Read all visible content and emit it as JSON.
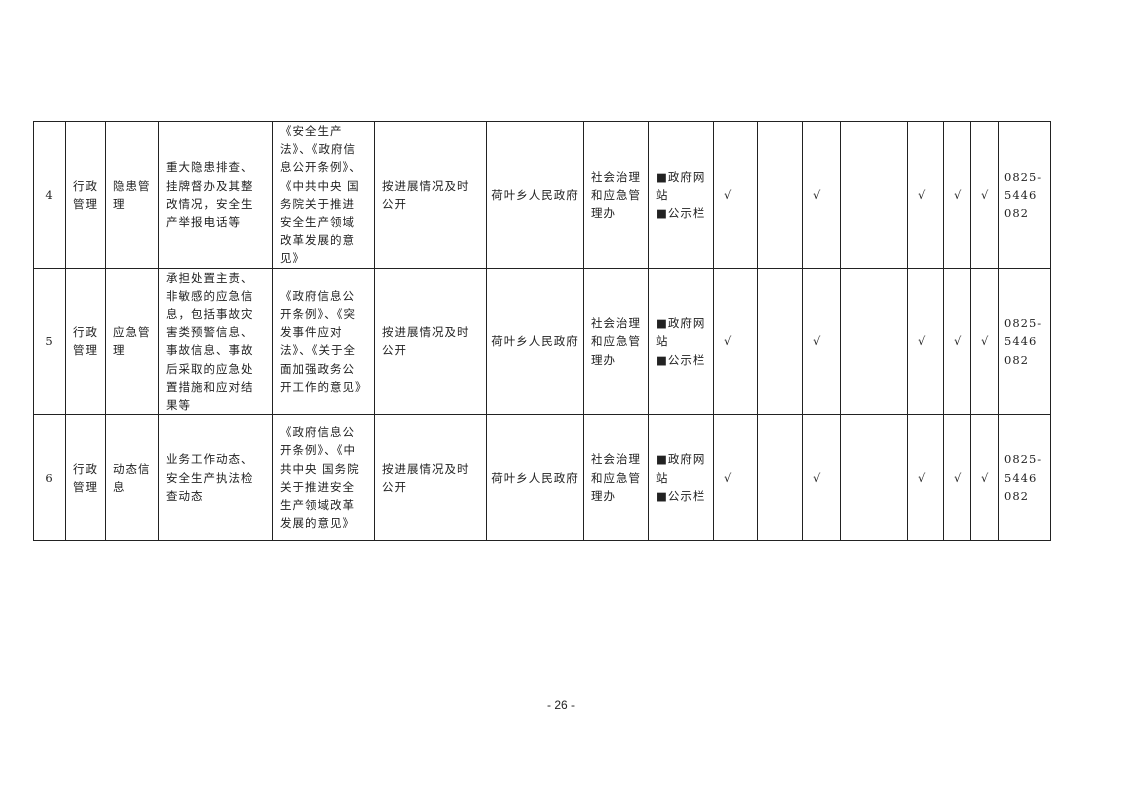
{
  "rows": [
    {
      "no": "4",
      "category": "行政管理",
      "item": "隐患管理",
      "content": "重大隐患排查、挂牌督办及其整改情况，安全生产举报电话等",
      "basis": "《安全生产法》、《政府信息公开条例》、《中共中央 国务院关于推进安全生产领域改革发展的意见》",
      "timing": "按进展情况及时公开",
      "subject": "荷叶乡人民政府",
      "dept": "社会治理和应急管理办",
      "channel": "■政府网站\n■公示栏",
      "c1": "√",
      "c2": "",
      "c3": "√",
      "c4": "",
      "c5": "√",
      "c6": "√",
      "c7": "√",
      "phone": "0825-5446082"
    },
    {
      "no": "5",
      "category": "行政管理",
      "item": "应急管理",
      "content": "承担处置主责、非敏感的应急信息，包括事故灾害类预警信息、事故信息、事故后采取的应急处置措施和应对结果等",
      "basis": "《政府信息公开条例》、《突发事件应对法》、《关于全面加强政务公开工作的意见》",
      "timing": "按进展情况及时公开",
      "subject": "荷叶乡人民政府",
      "dept": "社会治理和应急管理办",
      "channel": "■政府网站\n■公示栏",
      "c1": "√",
      "c2": "",
      "c3": "√",
      "c4": "",
      "c5": "√",
      "c6": "√",
      "c7": "√",
      "phone": "0825-5446082"
    },
    {
      "no": "6",
      "category": "行政管理",
      "item": "动态信息",
      "content": "业务工作动态、安全生产执法检查动态",
      "basis": "《政府信息公开条例》、《中共中央 国务院关于推进安全生产领域改革发展的意见》",
      "timing": "按进展情况及时公开",
      "subject": "荷叶乡人民政府",
      "dept": "社会治理和应急管理办",
      "channel": "■政府网站\n■公示栏",
      "c1": "√",
      "c2": "",
      "c3": "√",
      "c4": "",
      "c5": "√",
      "c6": "√",
      "c7": "√",
      "phone": "0825-5446082"
    }
  ],
  "footer": {
    "page_number": "- 26 -"
  }
}
